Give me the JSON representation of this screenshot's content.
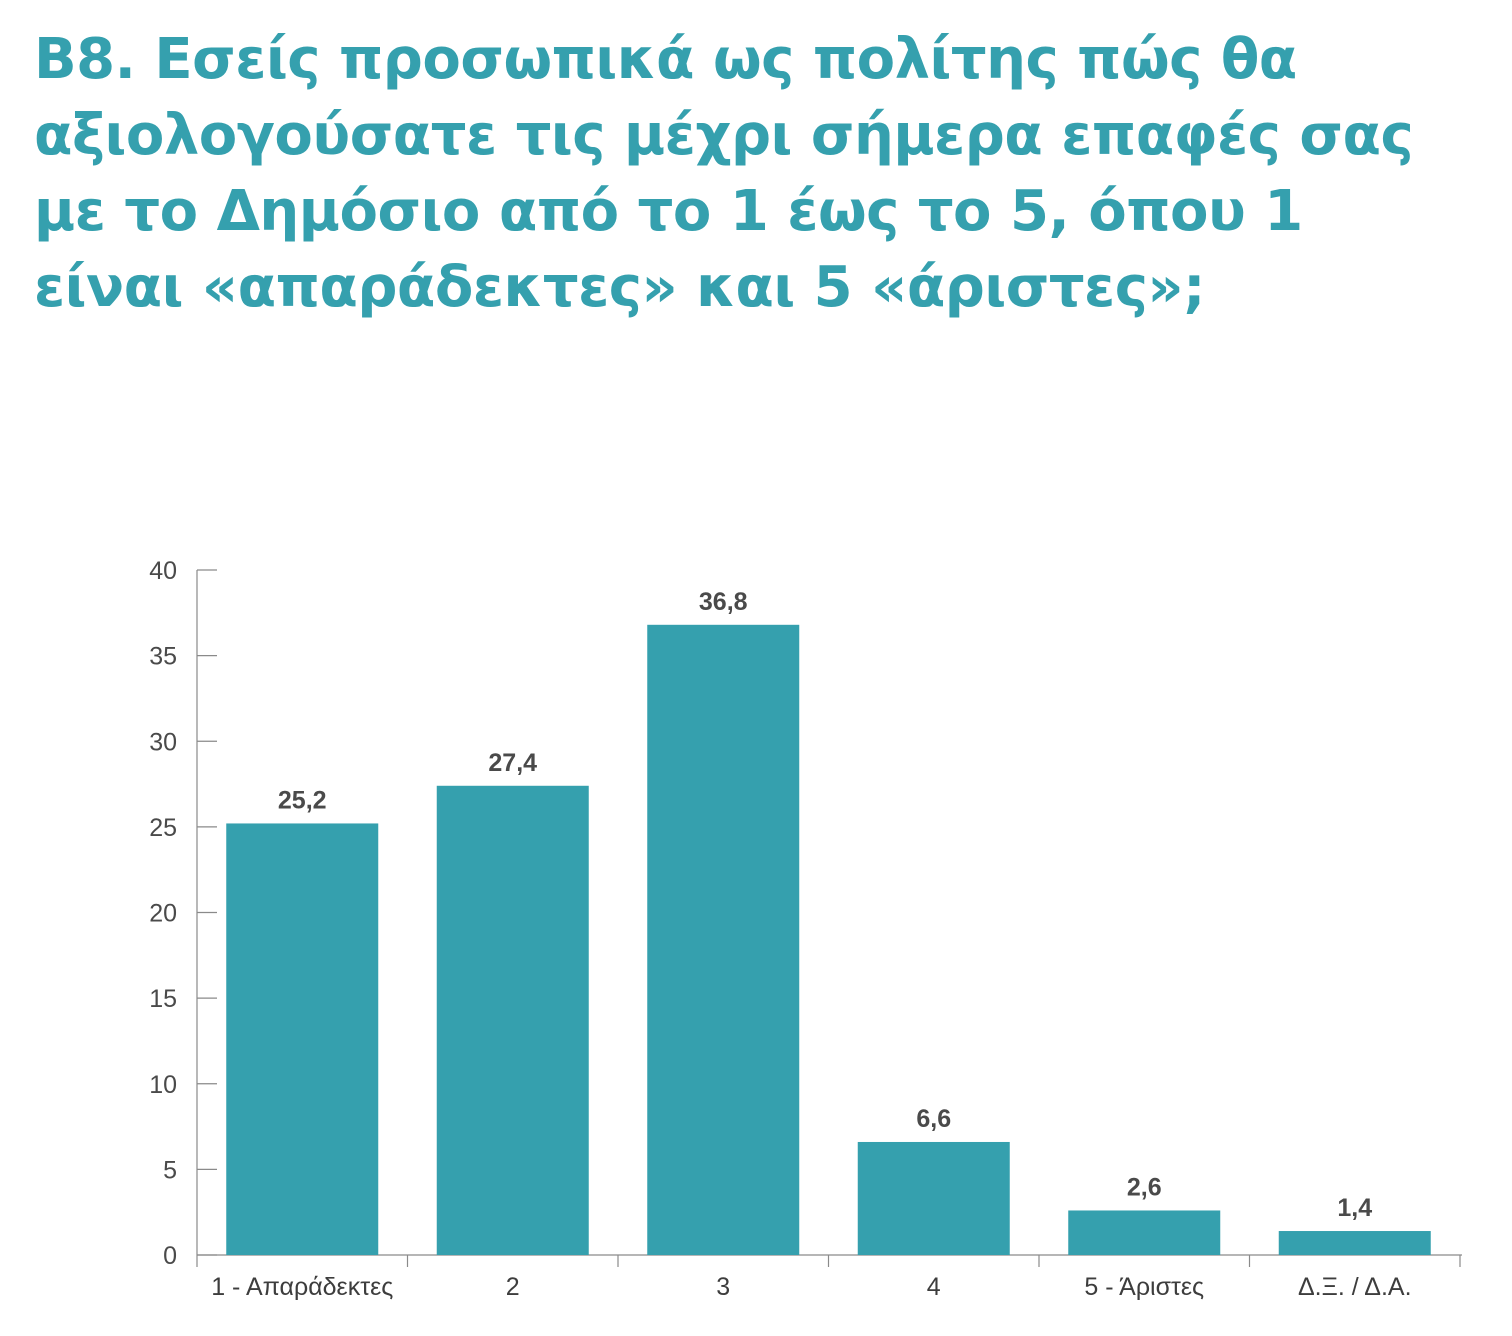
{
  "chart_data": {
    "type": "bar",
    "title": "B8. Εσείς προσωπικά ως πολίτης πώς θα αξιολογούσατε τις μέχρι σήμερα επαφές σας με το Δημόσιο από το 1 έως το 5, όπου 1 είναι «απαράδεκτες» και 5 «άριστες»;",
    "xlabel": "",
    "ylabel": "",
    "categories": [
      "1 - Απαράδεκτες",
      "2",
      "3",
      "4",
      "5 - Άριστες",
      "Δ.Ξ. / Δ.Α."
    ],
    "values": [
      25.2,
      27.4,
      36.8,
      6.6,
      2.6,
      1.4
    ],
    "value_labels": [
      "25,2",
      "27,4",
      "36,8",
      "6,6",
      "2,6",
      "1,4"
    ],
    "yticks": [
      0,
      5,
      10,
      15,
      20,
      25,
      30,
      35,
      40
    ],
    "ylim": [
      0,
      40
    ],
    "grid": false,
    "bar_color": "#35a0ae",
    "title_color": "#35a0ae"
  }
}
